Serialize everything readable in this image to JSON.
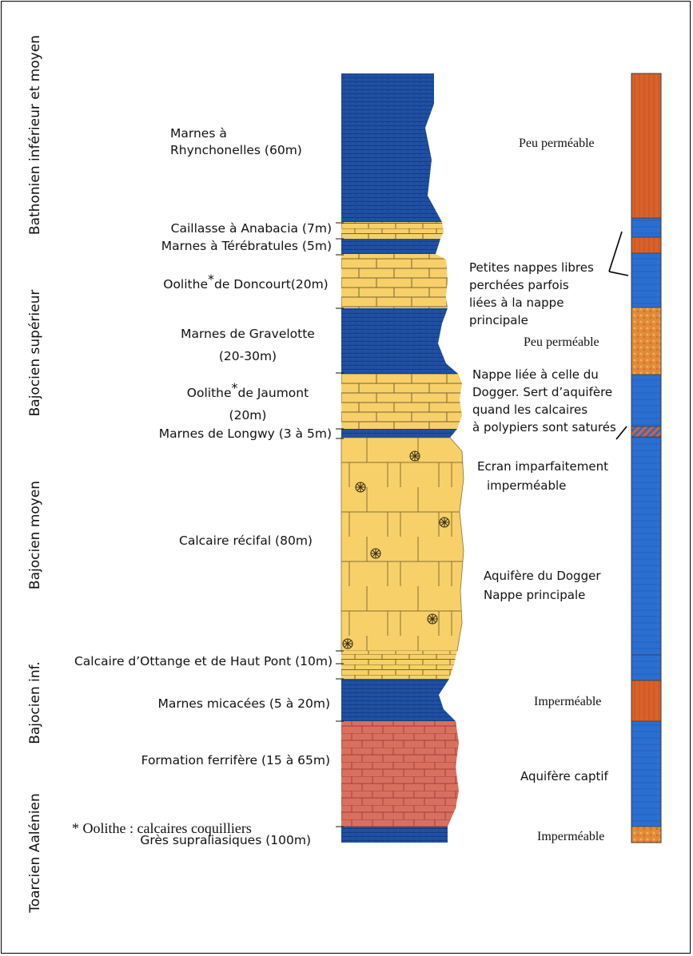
{
  "stages": [
    {
      "id": "bathonien",
      "label": "Bathonien inférieur et moyen"
    },
    {
      "id": "bajocien-sup",
      "label": "Bajocien supérieur"
    },
    {
      "id": "bajocien-moy",
      "label": "Bajocien moyen"
    },
    {
      "id": "bajocien-inf",
      "label": "Bajocien inf."
    },
    {
      "id": "toarcien",
      "label": "Toarcien Aalénien"
    }
  ],
  "layers": [
    {
      "id": "marnes-rhynch",
      "lines": [
        "Marnes à",
        "Rhynchonelles (60m)"
      ]
    },
    {
      "id": "caillasse",
      "lines": [
        "Caillasse à Anabacia (7m)"
      ]
    },
    {
      "id": "marnes-tereb",
      "lines": [
        "Marnes à Térébratules (5m)"
      ]
    },
    {
      "id": "oolithe-doncourt",
      "lines": [
        "Oolithe",
        "*",
        "de Doncourt(20m)"
      ]
    },
    {
      "id": "marnes-gravelotte",
      "lines": [
        "Marnes de Gravelotte",
        "(20-30m)"
      ]
    },
    {
      "id": "oolithe-jaumont",
      "lines": [
        "Oolithe",
        "*",
        "de Jaumont",
        "(20m)"
      ]
    },
    {
      "id": "marnes-longwy",
      "lines": [
        "Marnes de Longwy (3 à 5m)"
      ]
    },
    {
      "id": "calcaire-recifal",
      "lines": [
        "Calcaire récifal (80m)"
      ]
    },
    {
      "id": "calcaire-ottange",
      "lines": [
        "Calcaire d’Ottange et de Haut Pont (10m)"
      ]
    },
    {
      "id": "marnes-micacees",
      "lines": [
        "Marnes micacées (5 à 20m)"
      ]
    },
    {
      "id": "formation-ferrifere",
      "lines": [
        "Formation ferrifère (15 à 65m)"
      ]
    },
    {
      "id": "gres-supraliasiques",
      "lines": [
        "Grès supraliasiques (100m)"
      ]
    }
  ],
  "permeability": {
    "peu1": "Peu perméable",
    "petites": [
      "Petites nappes libres",
      "perchées parfois",
      "liées à la nappe",
      "principale"
    ],
    "peu2": "Peu perméable",
    "nappe_liee": [
      "Nappe liée à celle du",
      "Dogger. Sert d’aquifère",
      "quand les calcaires",
      "à polypiers sont saturés"
    ],
    "ecran": [
      "Ecran imparfaitement",
      "imperméable"
    ],
    "aquifere_dogger": [
      "Aquifère du Dogger",
      "Nappe principale"
    ],
    "imper1": "Imperméable",
    "captif": "Aquifère captif",
    "imper2": "Imperméable"
  },
  "legend": "* Oolithe : calcaires coquilliers",
  "colors": {
    "marl_blue": "#1f4fa3",
    "limestone_yellow": "#f7d06a",
    "ferruginous_red": "#d9705f",
    "bar_blue": "#2a6fd0",
    "bar_orange": "#d9622a"
  }
}
